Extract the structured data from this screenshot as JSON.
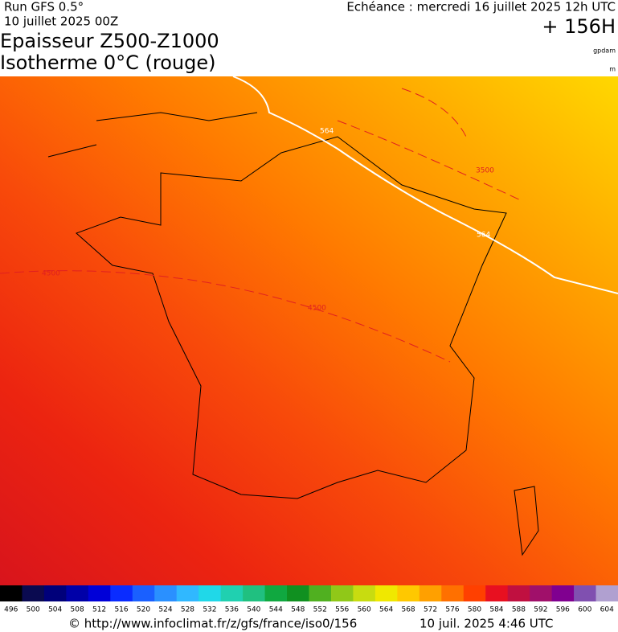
{
  "header": {
    "run": "Run GFS 0.5°",
    "run_date": "10 juillet 2025 00Z",
    "valid": "Echéance : mercredi 16 juillet 2025 12h UTC",
    "lead": "+ 156H",
    "title_1": "Epaisseur Z500-Z1000",
    "title_2": "Isotherme 0°C (rouge)",
    "unit_1": "gpdam",
    "unit_2": "m"
  },
  "map": {
    "contour_labels": [
      "564",
      "3500",
      "4500",
      "4500",
      "564"
    ]
  },
  "colorbar": {
    "labels": [
      496,
      500,
      504,
      508,
      512,
      516,
      520,
      524,
      528,
      532,
      536,
      540,
      544,
      548,
      552,
      556,
      560,
      564,
      568,
      572,
      576,
      580,
      584,
      588,
      592,
      596,
      600,
      604
    ],
    "colors": [
      "#000000",
      "#0a0a50",
      "#00007a",
      "#0000a8",
      "#0000d8",
      "#0a2cff",
      "#1a60ff",
      "#2a90ff",
      "#30b8ff",
      "#20d8e8",
      "#20d0b0",
      "#20c080",
      "#10a840",
      "#109020",
      "#50b020",
      "#90c818",
      "#c8dc10",
      "#f0e800",
      "#ffc800",
      "#ffa000",
      "#ff7000",
      "#ff4000",
      "#e81020",
      "#c01040",
      "#a0106a",
      "#800090",
      "#8050b0",
      "#b0a0d0"
    ]
  },
  "footer": {
    "source": "© http://www.infoclimat.fr/z/gfs/france/iso0/156",
    "generated": "10 juil. 2025  4:46 UTC"
  }
}
